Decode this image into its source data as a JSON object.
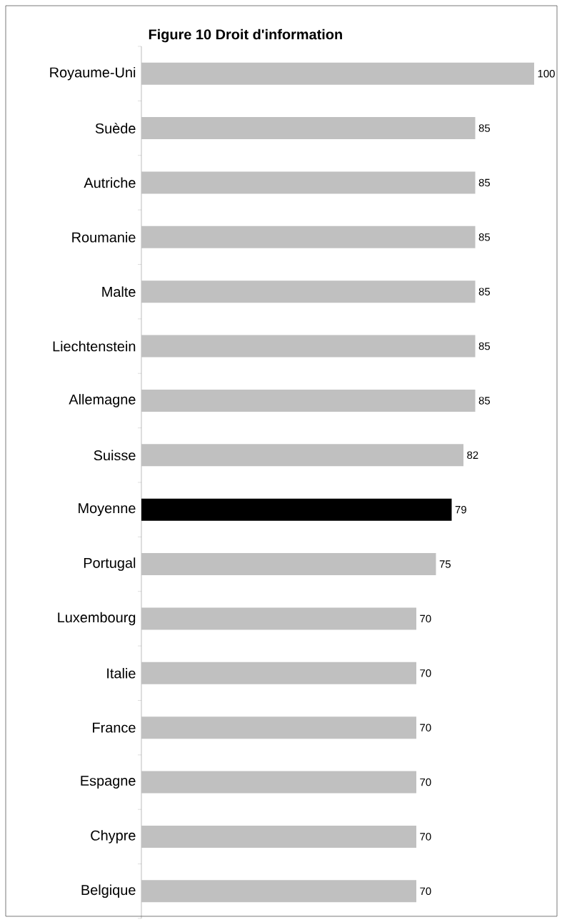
{
  "chart_data": {
    "type": "bar",
    "orientation": "horizontal",
    "title": "Figure 10   Droit d'information",
    "categories": [
      "Royaume-Uni",
      "Suède",
      "Autriche",
      "Roumanie",
      "Malte",
      "Liechtenstein",
      "Allemagne",
      "Suisse",
      "Moyenne",
      "Portugal",
      "Luxembourg",
      "Italie",
      "France",
      "Espagne",
      "Chypre",
      "Belgique"
    ],
    "values": [
      100,
      85,
      85,
      85,
      85,
      85,
      85,
      82,
      79,
      75,
      70,
      70,
      70,
      70,
      70,
      70
    ],
    "colors": [
      "#c0c0c0",
      "#c0c0c0",
      "#c0c0c0",
      "#c0c0c0",
      "#c0c0c0",
      "#c0c0c0",
      "#c0c0c0",
      "#c0c0c0",
      "#000000",
      "#c0c0c0",
      "#c0c0c0",
      "#c0c0c0",
      "#c0c0c0",
      "#c0c0c0",
      "#c0c0c0",
      "#c0c0c0"
    ],
    "data_labels": true
  }
}
